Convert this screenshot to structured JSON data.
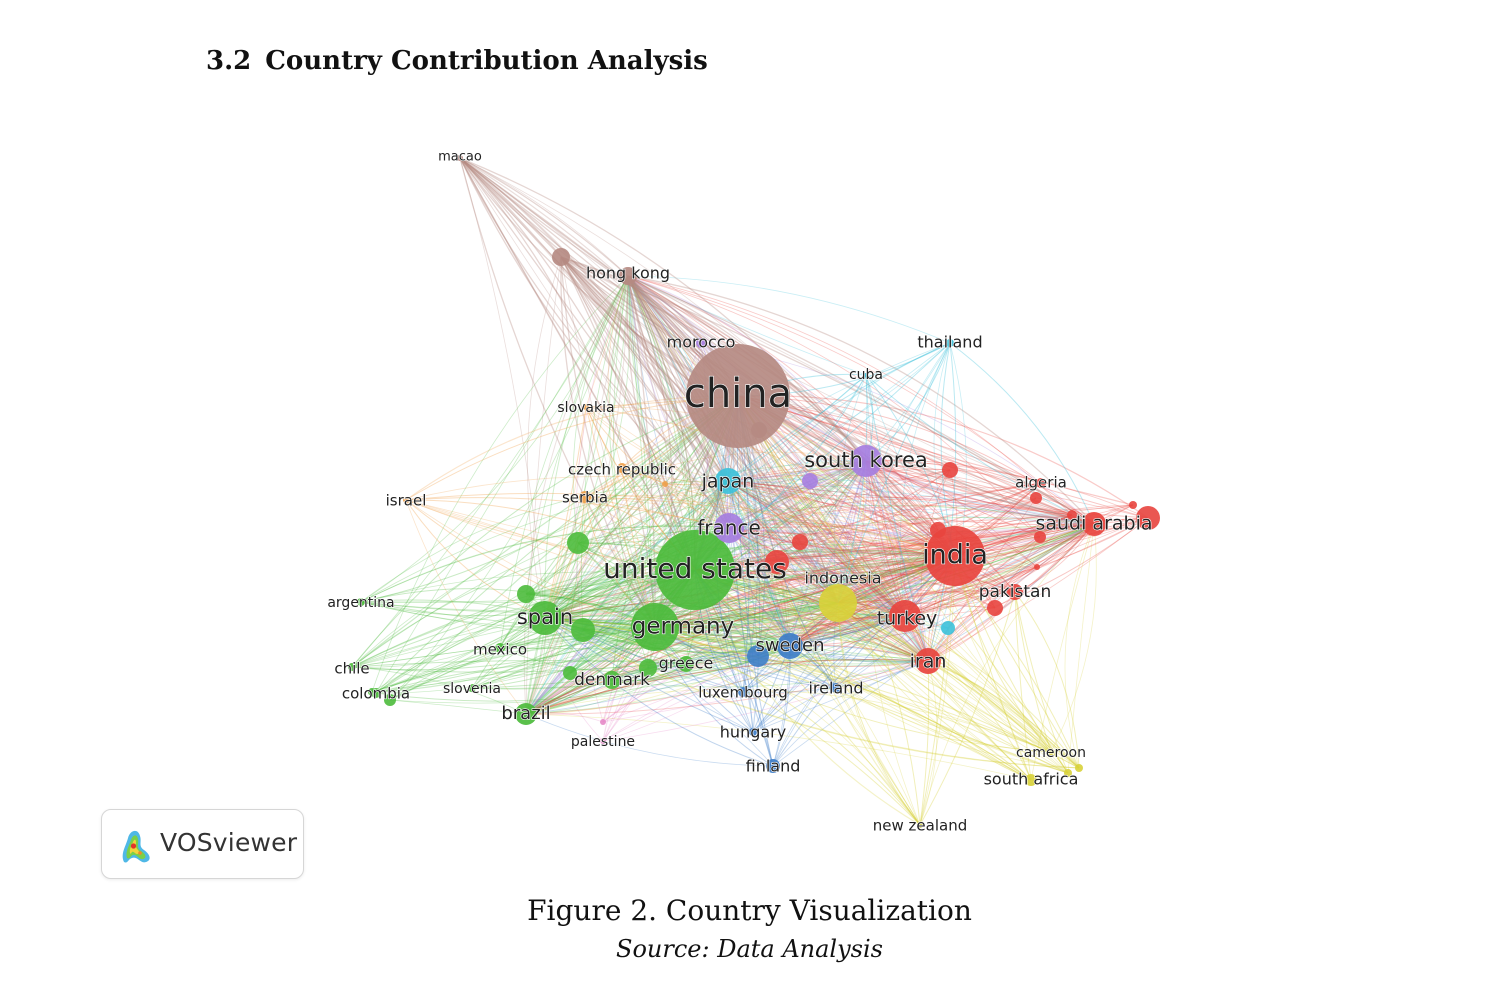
{
  "section": {
    "number": "3.2",
    "title": "Country Contribution Analysis"
  },
  "figure": {
    "caption": "Figure 2. Country Visualization",
    "source": "Source: Data Analysis"
  },
  "logo": {
    "text": "VOSviewer"
  },
  "colors": {
    "brown": "#b58a82",
    "red": "#e8443e",
    "green": "#4cbb3c",
    "purple": "#a67ee0",
    "cyan": "#3cc1da",
    "blue": "#3d7dc8",
    "yellow": "#d8d13a",
    "orange": "#f0a04a",
    "pink": "#e58ac8"
  },
  "network": {
    "nodes": [
      {
        "id": "china",
        "label": "china",
        "cluster": "brown",
        "size": "xl"
      },
      {
        "id": "hongkong",
        "label": "hong kong",
        "cluster": "brown",
        "size": "s"
      },
      {
        "id": "macao",
        "label": "macao",
        "cluster": "brown",
        "size": "xs"
      },
      {
        "id": "unitedstates",
        "label": "united states",
        "cluster": "green",
        "size": "xl"
      },
      {
        "id": "germany",
        "label": "germany",
        "cluster": "green",
        "size": "l"
      },
      {
        "id": "spain",
        "label": "spain",
        "cluster": "green",
        "size": "m"
      },
      {
        "id": "brazil",
        "label": "brazil",
        "cluster": "green",
        "size": "s"
      },
      {
        "id": "denmark",
        "label": "denmark",
        "cluster": "green",
        "size": "s"
      },
      {
        "id": "mexico",
        "label": "mexico",
        "cluster": "green",
        "size": "xs"
      },
      {
        "id": "argentina",
        "label": "argentina",
        "cluster": "green",
        "size": "xs"
      },
      {
        "id": "chile",
        "label": "chile",
        "cluster": "green",
        "size": "xs"
      },
      {
        "id": "colombia",
        "label": "colombia",
        "cluster": "green",
        "size": "xs"
      },
      {
        "id": "slovenia",
        "label": "slovenia",
        "cluster": "green",
        "size": "xs"
      },
      {
        "id": "greece",
        "label": "greece",
        "cluster": "green",
        "size": "s"
      },
      {
        "id": "india",
        "label": "india",
        "cluster": "red",
        "size": "l"
      },
      {
        "id": "saudiarabia",
        "label": "saudi arabia",
        "cluster": "red",
        "size": "s"
      },
      {
        "id": "pakistan",
        "label": "pakistan",
        "cluster": "red",
        "size": "s"
      },
      {
        "id": "algeria",
        "label": "algeria",
        "cluster": "red",
        "size": "xs"
      },
      {
        "id": "turkey",
        "label": "turkey",
        "cluster": "red",
        "size": "s"
      },
      {
        "id": "iran",
        "label": "iran",
        "cluster": "red",
        "size": "s"
      },
      {
        "id": "southkorea",
        "label": "south korea",
        "cluster": "purple",
        "size": "m"
      },
      {
        "id": "france",
        "label": "france",
        "cluster": "purple",
        "size": "m"
      },
      {
        "id": "morocco",
        "label": "morocco",
        "cluster": "purple",
        "size": "xs"
      },
      {
        "id": "japan",
        "label": "japan",
        "cluster": "cyan",
        "size": "s"
      },
      {
        "id": "thailand",
        "label": "thailand",
        "cluster": "cyan",
        "size": "xs"
      },
      {
        "id": "cuba",
        "label": "cuba",
        "cluster": "cyan",
        "size": "xs"
      },
      {
        "id": "sweden",
        "label": "sweden",
        "cluster": "blue",
        "size": "s"
      },
      {
        "id": "luxembourg",
        "label": "luxembourg",
        "cluster": "blue",
        "size": "xs"
      },
      {
        "id": "ireland",
        "label": "ireland",
        "cluster": "blue",
        "size": "xs"
      },
      {
        "id": "hungary",
        "label": "hungary",
        "cluster": "blue",
        "size": "xs"
      },
      {
        "id": "finland",
        "label": "finland",
        "cluster": "blue",
        "size": "xs"
      },
      {
        "id": "indonesia",
        "label": "indonesia",
        "cluster": "yellow",
        "size": "m"
      },
      {
        "id": "cameroon",
        "label": "cameroon",
        "cluster": "yellow",
        "size": "xs"
      },
      {
        "id": "southafrica",
        "label": "south africa",
        "cluster": "yellow",
        "size": "xs"
      },
      {
        "id": "newzealand",
        "label": "new zealand",
        "cluster": "yellow",
        "size": "xs"
      },
      {
        "id": "slovakia",
        "label": "slovakia",
        "cluster": "orange",
        "size": "xs"
      },
      {
        "id": "czechrepublic",
        "label": "czech republic",
        "cluster": "orange",
        "size": "xs"
      },
      {
        "id": "serbia",
        "label": "serbia",
        "cluster": "orange",
        "size": "xs"
      },
      {
        "id": "israel",
        "label": "israel",
        "cluster": "orange",
        "size": "xs"
      },
      {
        "id": "palestine",
        "label": "palestine",
        "cluster": "pink",
        "size": "xs"
      }
    ]
  }
}
